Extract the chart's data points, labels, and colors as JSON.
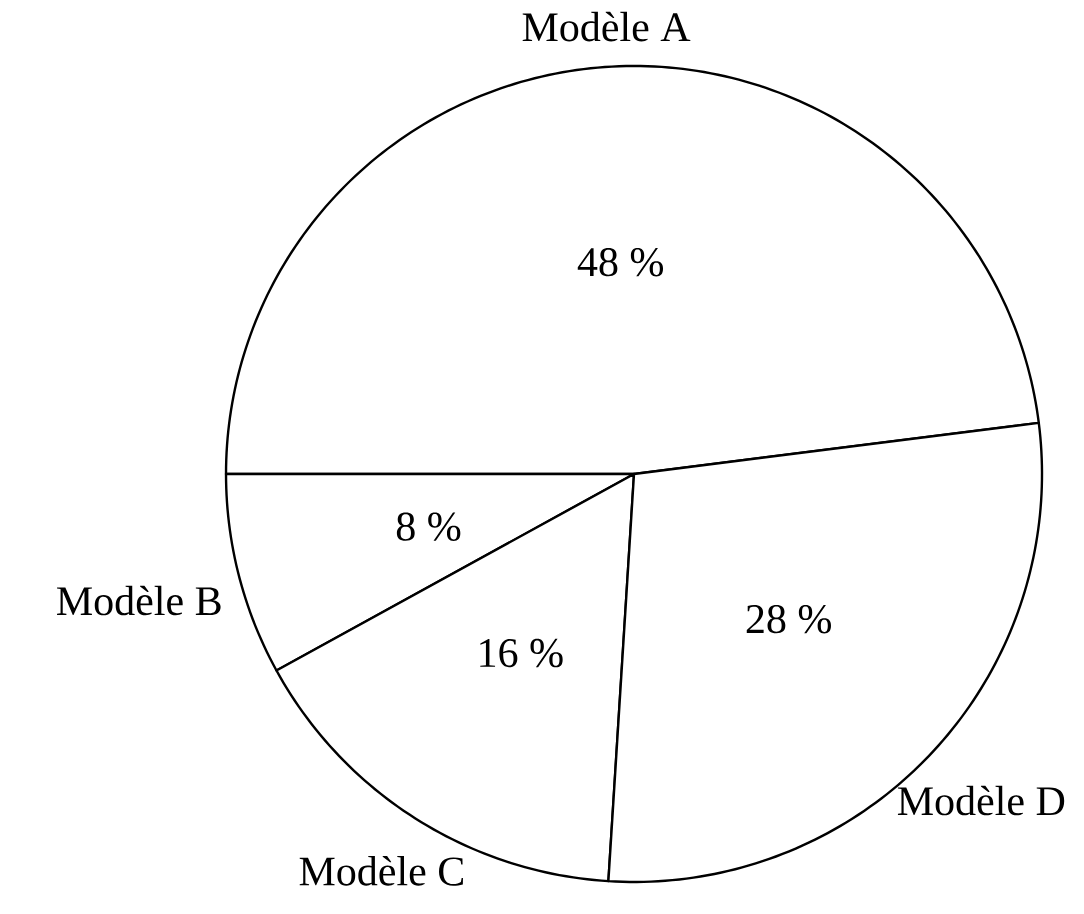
{
  "chart_data": {
    "type": "pie",
    "categories": [
      "Modèle A",
      "Modèle B",
      "Modèle C",
      "Modèle D"
    ],
    "values": [
      48,
      8,
      16,
      28
    ],
    "value_labels": [
      "48 %",
      "8 %",
      "16 %",
      "28 %"
    ],
    "colors": [
      "#ffffff",
      "#ffffff",
      "#ffffff",
      "#ffffff"
    ]
  }
}
